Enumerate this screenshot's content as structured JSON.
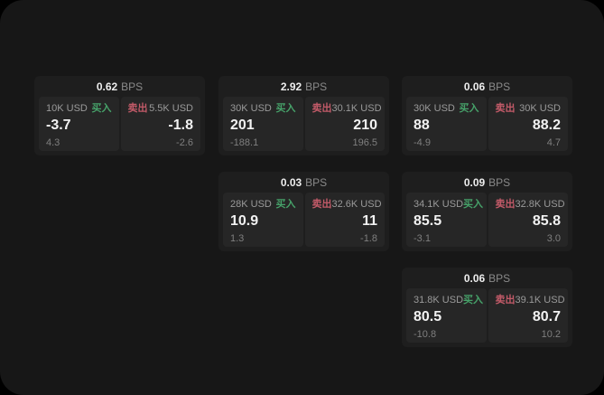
{
  "colors": {
    "buy_green": "#46a169",
    "sell_red": "#c25a68",
    "background": "#171717",
    "card_background": "#1e1e1e",
    "panel_background": "#262626"
  },
  "cards": [
    {
      "bps": "0.62",
      "unit": "BPS",
      "buy": {
        "amount": "10K USD",
        "side_label": "买入",
        "value": "-3.7",
        "delta": "4.3"
      },
      "sell": {
        "side_label": "卖出",
        "amount": "5.5K USD",
        "value": "-1.8",
        "delta": "-2.6"
      }
    },
    {
      "bps": "2.92",
      "unit": "BPS",
      "buy": {
        "amount": "30K USD",
        "side_label": "买入",
        "value": "201",
        "delta": "-188.1"
      },
      "sell": {
        "side_label": "卖出",
        "amount": "30.1K USD",
        "value": "210",
        "delta": "196.5"
      }
    },
    {
      "bps": "0.06",
      "unit": "BPS",
      "buy": {
        "amount": "30K USD",
        "side_label": "买入",
        "value": "88",
        "delta": "-4.9"
      },
      "sell": {
        "side_label": "卖出",
        "amount": "30K USD",
        "value": "88.2",
        "delta": "4.7"
      }
    },
    {
      "bps": "0.03",
      "unit": "BPS",
      "buy": {
        "amount": "28K USD",
        "side_label": "买入",
        "value": "10.9",
        "delta": "1.3"
      },
      "sell": {
        "side_label": "卖出",
        "amount": "32.6K USD",
        "value": "11",
        "delta": "-1.8"
      }
    },
    {
      "bps": "0.09",
      "unit": "BPS",
      "buy": {
        "amount": "34.1K USD",
        "side_label": "买入",
        "value": "85.5",
        "delta": "-3.1"
      },
      "sell": {
        "side_label": "卖出",
        "amount": "32.8K USD",
        "value": "85.8",
        "delta": "3.0"
      }
    },
    {
      "bps": "0.06",
      "unit": "BPS",
      "buy": {
        "amount": "31.8K USD",
        "side_label": "买入",
        "value": "80.5",
        "delta": "-10.8"
      },
      "sell": {
        "side_label": "卖出",
        "amount": "39.1K USD",
        "value": "80.7",
        "delta": "10.2"
      }
    }
  ]
}
